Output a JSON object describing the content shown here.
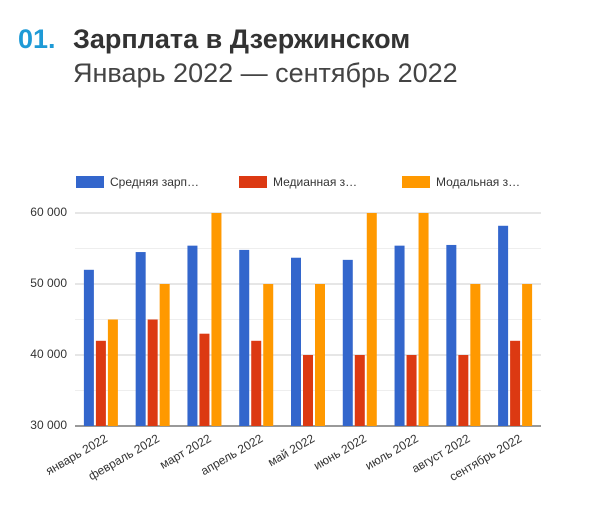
{
  "header": {
    "number": "01.",
    "title": "Зарплата в Дзержинском",
    "subtitle": "Январь 2022 — сентябрь 2022"
  },
  "chart_data": {
    "type": "bar",
    "categories": [
      "январь 2022",
      "февраль 2022",
      "март 2022",
      "апрель 2022",
      "май 2022",
      "июнь 2022",
      "июль 2022",
      "август 2022",
      "сентябрь 2022"
    ],
    "series": [
      {
        "name": "Средняя зарп…",
        "color": "#3366cc",
        "values": [
          52000,
          54500,
          55400,
          54800,
          53700,
          53400,
          55400,
          55500,
          58200
        ]
      },
      {
        "name": "Медианная з…",
        "color": "#dc3912",
        "values": [
          42000,
          45000,
          43000,
          42000,
          40000,
          40000,
          40000,
          40000,
          42000
        ]
      },
      {
        "name": "Модальная з…",
        "color": "#ff9900",
        "values": [
          45000,
          50000,
          60000,
          50000,
          50000,
          60000,
          60000,
          50000,
          50000
        ]
      }
    ],
    "ylim": [
      30000,
      60000
    ],
    "yticks": [
      {
        "value": 30000,
        "label": "30 000"
      },
      {
        "value": 40000,
        "label": "40 000"
      },
      {
        "value": 50000,
        "label": "50 000"
      },
      {
        "value": 60000,
        "label": "60 000"
      }
    ],
    "minor_yticks": [
      35000,
      45000,
      55000
    ],
    "grid": true,
    "legend": "top"
  }
}
